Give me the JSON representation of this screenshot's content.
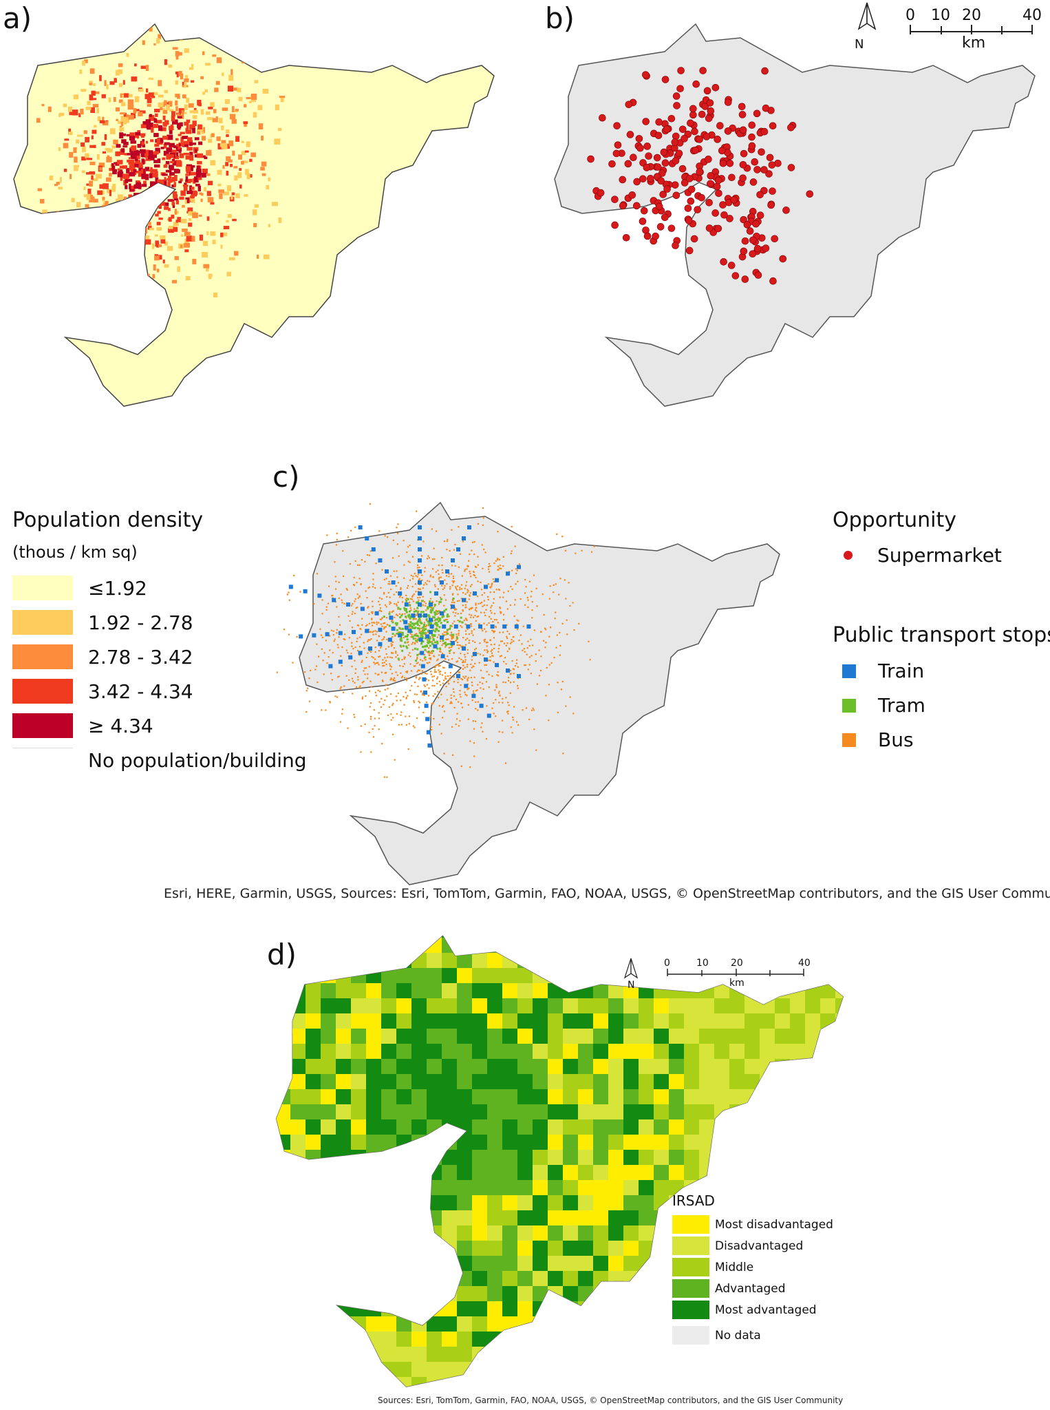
{
  "panels": {
    "a": {
      "label": "a)"
    },
    "b": {
      "label": "b)"
    },
    "c": {
      "label": "c)"
    },
    "d": {
      "label": "d)"
    }
  },
  "population_legend": {
    "title": "Population density",
    "subtitle": "(thous /  km sq)",
    "items": [
      {
        "label": "≤1.92",
        "color": "#ffffbf"
      },
      {
        "label": "1.92 - 2.78",
        "color": "#fecc5c"
      },
      {
        "label": "2.78 - 3.42",
        "color": "#fd8d3c"
      },
      {
        "label": "3.42 - 4.34",
        "color": "#f03b20"
      },
      {
        "label": "≥ 4.34",
        "color": "#bd0026"
      },
      {
        "label": "No population/building",
        "color": "#ffffff"
      }
    ]
  },
  "opportunity_legend": {
    "title": "Opportunity",
    "items": [
      {
        "label": "Supermarket",
        "color": "#d7191c"
      }
    ]
  },
  "transport_legend": {
    "title": "Public transport stops",
    "items": [
      {
        "label": "Train",
        "color": "#1f78d1"
      },
      {
        "label": "Tram",
        "color": "#6cbf2a"
      },
      {
        "label": "Bus",
        "color": "#f58a1f"
      }
    ]
  },
  "irsad_legend": {
    "title": "IRSAD",
    "items": [
      {
        "label": "Most disadvantaged",
        "color": "#ffed00"
      },
      {
        "label": "Disadvantaged",
        "color": "#d7e43a"
      },
      {
        "label": "Middle",
        "color": "#a9cf17"
      },
      {
        "label": "Advantaged",
        "color": "#5fb320"
      },
      {
        "label": "Most advantaged",
        "color": "#138a12"
      },
      {
        "label": "No data",
        "color": "#ececec"
      }
    ]
  },
  "scale_bar_b": {
    "ticks": [
      "0",
      "10",
      "20",
      "40"
    ],
    "unit": "km",
    "north": "N"
  },
  "scale_bar_d": {
    "ticks": [
      "0",
      "10",
      "20",
      "40"
    ],
    "unit": "km",
    "north": "N"
  },
  "credits": {
    "c": "Esri, HERE, Garmin, USGS, Sources: Esri, TomTom, Garmin, FAO, NOAA, USGS, © OpenStreetMap contributors, and the GIS User Community",
    "d": "Sources: Esri, TomTom, Garmin, FAO, NOAA, USGS, © OpenStreetMap contributors, and the GIS User Community"
  },
  "colors": {
    "map_grey": "#e7e7e7",
    "outline": "#444444",
    "base_yellow": "#ffffbf"
  }
}
